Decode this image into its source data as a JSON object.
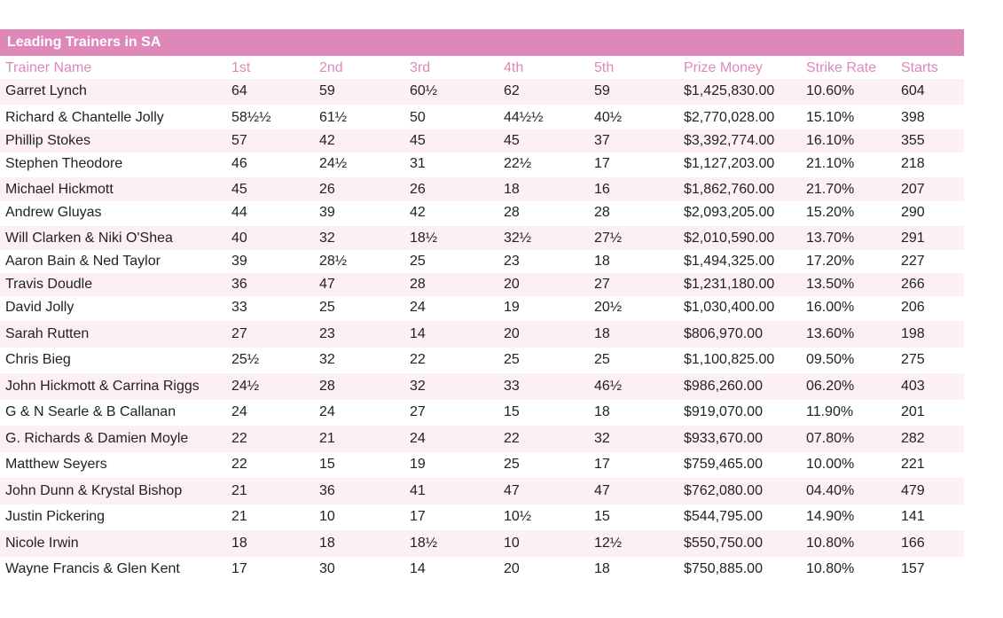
{
  "table": {
    "title": "Leading Trainers in SA",
    "headers": [
      "Trainer Name",
      "1st",
      "2nd",
      "3rd",
      "4th",
      "5th",
      "Prize Money",
      "Strike Rate",
      "Starts"
    ],
    "rows": [
      [
        "Garret Lynch",
        "64",
        "59",
        "60½",
        "62",
        "59",
        "$1,425,830.00",
        "10.60%",
        "604"
      ],
      [
        "Richard & Chantelle Jolly",
        "58½½",
        "61½",
        "50",
        "44½½",
        "40½",
        "$2,770,028.00",
        "15.10%",
        "398"
      ],
      [
        "Phillip Stokes",
        "57",
        "42",
        "45",
        "45",
        "37",
        "$3,392,774.00",
        "16.10%",
        "355"
      ],
      [
        "Stephen Theodore",
        "46",
        "24½",
        "31",
        "22½",
        "17",
        "$1,127,203.00",
        "21.10%",
        "218"
      ],
      [
        "Michael Hickmott",
        "45",
        "26",
        "26",
        "18",
        "16",
        "$1,862,760.00",
        "21.70%",
        "207"
      ],
      [
        "Andrew Gluyas",
        "44",
        "39",
        "42",
        "28",
        "28",
        "$2,093,205.00",
        "15.20%",
        "290"
      ],
      [
        "Will Clarken & Niki O'Shea",
        "40",
        "32",
        "18½",
        "32½",
        "27½",
        "$2,010,590.00",
        "13.70%",
        "291"
      ],
      [
        "Aaron Bain & Ned Taylor",
        "39",
        "28½",
        "25",
        "23",
        "18",
        "$1,494,325.00",
        "17.20%",
        "227"
      ],
      [
        "Travis Doudle",
        "36",
        "47",
        "28",
        "20",
        "27",
        "$1,231,180.00",
        "13.50%",
        "266"
      ],
      [
        "David Jolly",
        "33",
        "25",
        "24",
        "19",
        "20½",
        "$1,030,400.00",
        "16.00%",
        "206"
      ],
      [
        "Sarah Rutten",
        "27",
        "23",
        "14",
        "20",
        "18",
        "$806,970.00",
        "13.60%",
        "198"
      ],
      [
        "Chris Bieg",
        "25½",
        "32",
        "22",
        "25",
        "25",
        "$1,100,825.00",
        "09.50%",
        "275"
      ],
      [
        "John Hickmott & Carrina Riggs",
        "24½",
        "28",
        "32",
        "33",
        "46½",
        "$986,260.00",
        "06.20%",
        "403"
      ],
      [
        "G & N Searle & B Callanan",
        "24",
        "24",
        "27",
        "15",
        "18",
        "$919,070.00",
        "11.90%",
        "201"
      ],
      [
        "G. Richards & Damien Moyle",
        "22",
        "21",
        "24",
        "22",
        "32",
        "$933,670.00",
        "07.80%",
        "282"
      ],
      [
        "Matthew Seyers",
        "22",
        "15",
        "19",
        "25",
        "17",
        "$759,465.00",
        "10.00%",
        "221"
      ],
      [
        "John Dunn & Krystal Bishop",
        "21",
        "36",
        "41",
        "47",
        "47",
        "$762,080.00",
        "04.40%",
        "479"
      ],
      [
        "Justin Pickering",
        "21",
        "10",
        "17",
        "10½",
        "15",
        "$544,795.00",
        "14.90%",
        "141"
      ],
      [
        "Nicole Irwin",
        "18",
        "18",
        "18½",
        "10",
        "12½",
        "$550,750.00",
        "10.80%",
        "166"
      ],
      [
        "Wayne Francis & Glen Kent",
        "17",
        "30",
        "14",
        "20",
        "18",
        "$750,885.00",
        "10.80%",
        "157"
      ]
    ]
  }
}
